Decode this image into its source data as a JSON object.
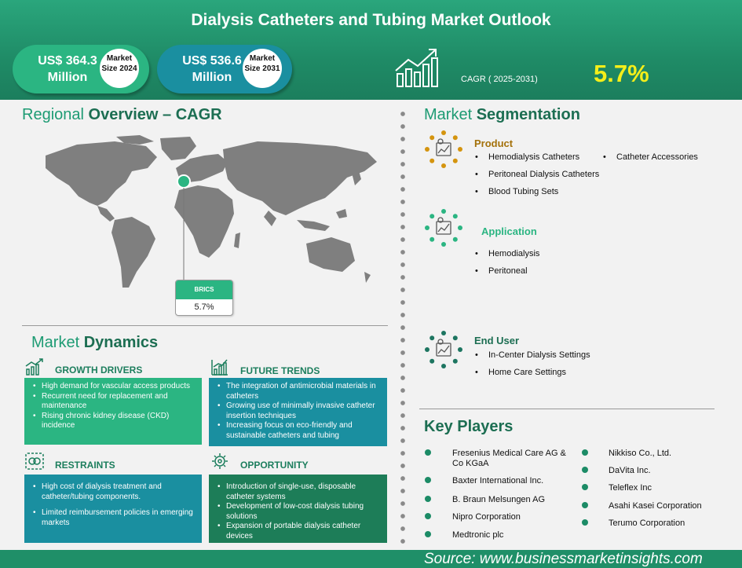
{
  "header": {
    "title": "Dialysis Catheters and Tubing Market Outlook",
    "size2024_value": "US$ 364.3 Million",
    "size2024_label": "Market Size 2024",
    "size2031_value": "US$ 536.6 Million",
    "size2031_label": "Market Size 2031",
    "cagr_label": "CAGR ( 2025-2031)",
    "cagr_value": "5.7%"
  },
  "regional": {
    "title_a": "Regional",
    "title_b": "Overview – CAGR",
    "marker_label": "BRICS",
    "marker_value": "5.7%"
  },
  "dynamics": {
    "title_a": "Market",
    "title_b": "Dynamics",
    "drivers": {
      "title": "GROWTH DRIVERS",
      "items": [
        "High demand for vascular access products",
        "Recurrent need for replacement and maintenance",
        "Rising chronic kidney disease (CKD) incidence"
      ]
    },
    "trends": {
      "title": "FUTURE TRENDS",
      "items": [
        "The integration of antimicrobial materials in catheters",
        "Growing use of minimally invasive catheter insertion techniques",
        "Increasing focus on eco-friendly and sustainable catheters and tubing"
      ]
    },
    "restraints": {
      "title": "RESTRAINTS",
      "items": [
        "High cost of dialysis treatment and catheter/tubing components.",
        "Limited reimbursement policies in emerging markets"
      ]
    },
    "opportunity": {
      "title": "OPPORTUNITY",
      "items": [
        "Introduction of single-use, disposable catheter systems",
        "Development of low-cost dialysis tubing solutions",
        "Expansion of portable dialysis catheter devices"
      ]
    }
  },
  "segmentation": {
    "title_a": "Market",
    "title_b": "Segmentation",
    "product": {
      "title": "Product",
      "items": [
        "Hemodialysis Catheters",
        "Catheter Accessories",
        "Peritoneal Dialysis Catheters",
        "Blood Tubing Sets"
      ]
    },
    "application": {
      "title": "Application",
      "items": [
        "Hemodialysis",
        "Peritoneal"
      ]
    },
    "end_user": {
      "title": "End User",
      "items": [
        "In-Center Dialysis Settings",
        "Home Care Settings"
      ]
    }
  },
  "players": {
    "title": "Key Players",
    "left": [
      "Fresenius Medical Care AG & Co KGaA",
      "Baxter International Inc.",
      "B. Braun Melsungen AG",
      "Nipro Corporation",
      "Medtronic plc"
    ],
    "right": [
      "Nikkiso Co., Ltd.",
      "DaVita Inc.",
      "Teleflex Inc",
      "Asahi Kasei Corporation",
      "Terumo Corporation"
    ]
  },
  "source": "Source:  www.businessmarketinsights.com",
  "colors": {
    "header_green": "#1f8b66",
    "accent_yellow": "#f4ee1a",
    "teal": "#1a8fa0",
    "light_green": "#2bb582",
    "dark_green": "#1c7e5d"
  },
  "icons": [
    "growth-chart-icon",
    "growth-drivers-icon",
    "future-trends-icon",
    "restraints-icon",
    "opportunity-icon",
    "product-icon",
    "application-icon",
    "end-user-icon"
  ]
}
